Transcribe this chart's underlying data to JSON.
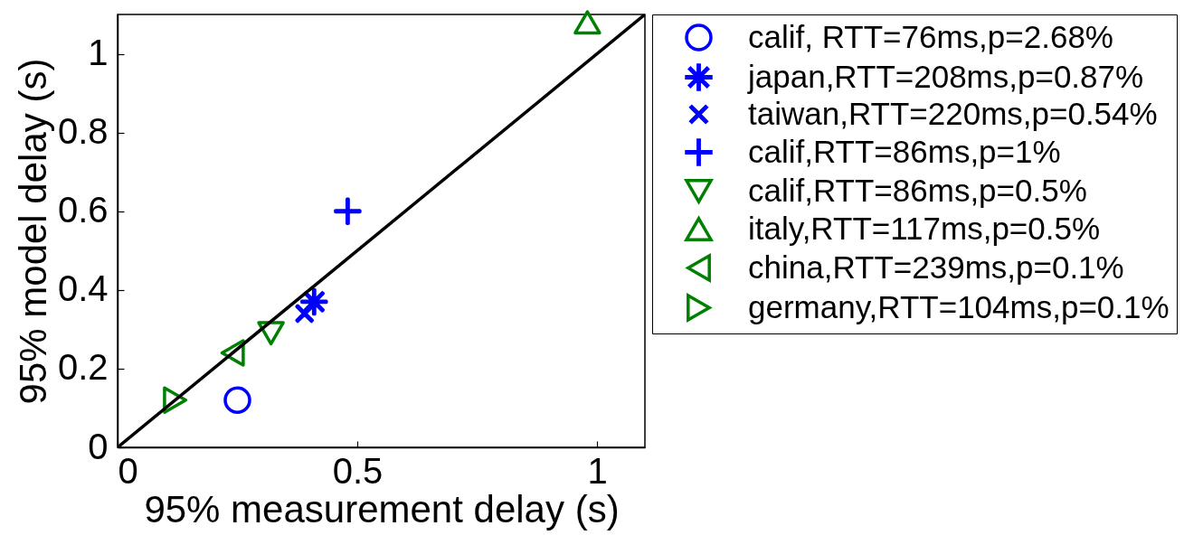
{
  "chart_data": {
    "type": "scatter",
    "xlabel": "95% measurement delay (s)",
    "ylabel": "95% model delay (s)",
    "xlim": [
      0,
      1.1
    ],
    "ylim": [
      0,
      1.1
    ],
    "xticks": [
      0,
      0.5,
      1
    ],
    "yticks": [
      0,
      0.2,
      0.4,
      0.6,
      0.8,
      1
    ],
    "legend": "right",
    "series": [
      {
        "name": "calif, RTT=76ms,p=2.68%",
        "color": "#0000ff",
        "marker": "circle",
        "x": [
          0.25
        ],
        "values": [
          0.12
        ]
      },
      {
        "name": "japan,RTT=208ms,p=0.87%",
        "color": "#0000ff",
        "marker": "star",
        "x": [
          0.41
        ],
        "values": [
          0.37
        ]
      },
      {
        "name": "taiwan,RTT=220ms,p=0.54%",
        "color": "#0000ff",
        "marker": "x",
        "x": [
          0.39
        ],
        "values": [
          0.34
        ]
      },
      {
        "name": "calif,RTT=86ms,p=1%",
        "color": "#0000ff",
        "marker": "cross",
        "x": [
          0.48
        ],
        "values": [
          0.6
        ]
      },
      {
        "name": "calif,RTT=86ms,p=0.5%",
        "color": "#008000",
        "marker": "triangle-down",
        "x": [
          0.32
        ],
        "values": [
          0.29
        ]
      },
      {
        "name": "italy,RTT=117ms,p=0.5%",
        "color": "#008000",
        "marker": "triangle-up",
        "x": [
          0.98
        ],
        "values": [
          1.08
        ]
      },
      {
        "name": "china,RTT=239ms,p=0.1%",
        "color": "#008000",
        "marker": "triangle-left",
        "x": [
          0.24
        ],
        "values": [
          0.24
        ]
      },
      {
        "name": "germany,RTT=104ms,p=0.1%",
        "color": "#008000",
        "marker": "triangle-right",
        "x": [
          0.12
        ],
        "values": [
          0.12
        ]
      },
      {
        "type": "line",
        "color": "#000000",
        "line_style": "solid",
        "x": [
          0,
          1.1
        ],
        "values": [
          0,
          1.1
        ]
      }
    ]
  }
}
